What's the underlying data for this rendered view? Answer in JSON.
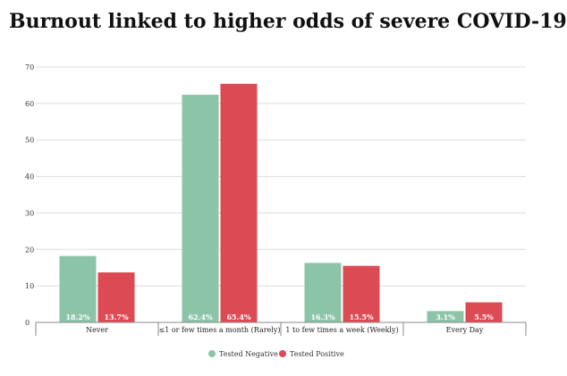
{
  "chart_data": {
    "type": "bar",
    "title": "Burnout linked to higher odds of severe COVID-19",
    "categories": [
      "Never",
      "≤1 or few times a month (Rarely)",
      "1 to few times a week (Weekly)",
      "Every Day"
    ],
    "series": [
      {
        "name": "Tested Negative",
        "color": "#8cc4a8",
        "values": [
          18.2,
          62.4,
          16.3,
          3.1
        ],
        "labels": [
          "18.2%",
          "62.4%",
          "16.3%",
          "3.1%"
        ]
      },
      {
        "name": "Tested Positive",
        "color": "#dc4b53",
        "values": [
          13.7,
          65.4,
          15.5,
          5.5
        ],
        "labels": [
          "13.7%",
          "65.4%",
          "15.5%",
          "5.5%"
        ]
      }
    ],
    "ylim": [
      0,
      70
    ],
    "yticks": [
      0,
      10,
      20,
      30,
      40,
      50,
      60,
      70
    ],
    "grid": true,
    "legend": "bottom-center"
  }
}
